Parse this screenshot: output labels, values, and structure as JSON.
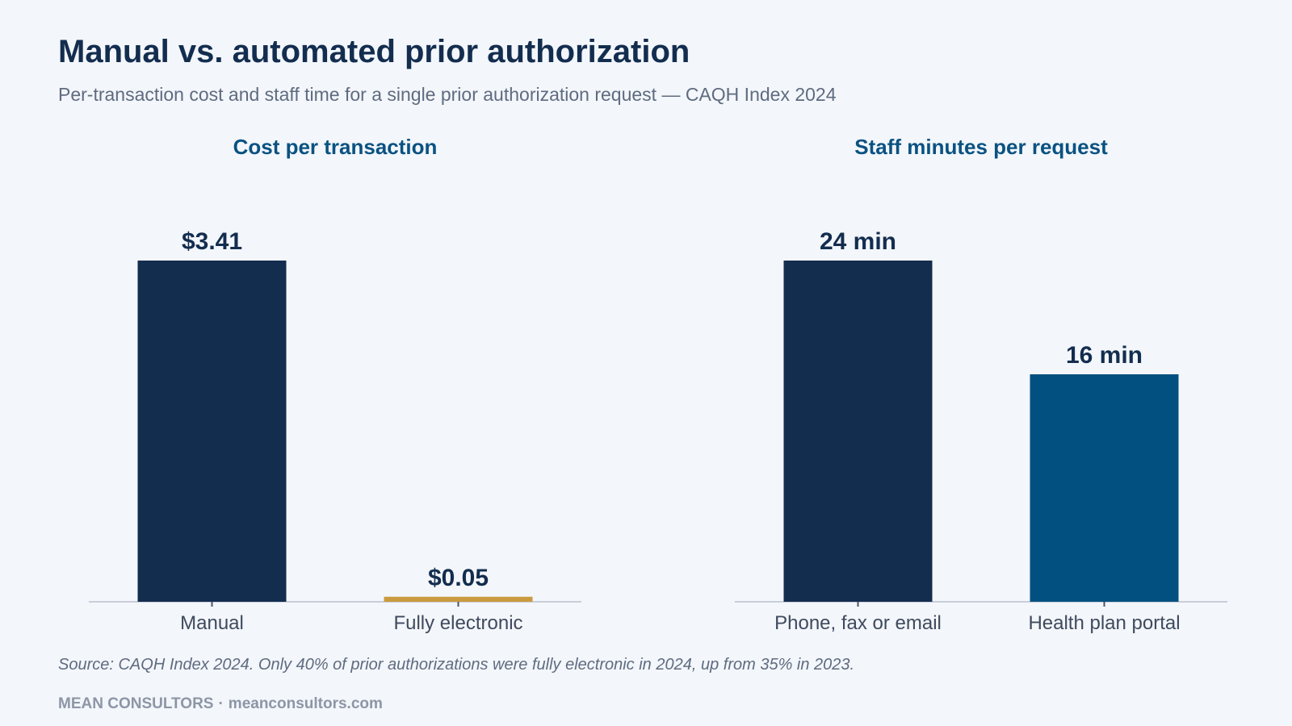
{
  "title": "Manual vs. automated prior authorization",
  "subtitle": "Per-transaction cost and staff time for a single prior authorization request — CAQH Index 2024",
  "chart_data": [
    {
      "type": "bar",
      "title": "Cost per transaction",
      "categories": [
        "Manual",
        "Fully electronic"
      ],
      "values": [
        3.41,
        0.05
      ],
      "value_labels": [
        "$3.41",
        "$0.05"
      ],
      "colors": [
        "#132d4f",
        "#c99a3e"
      ],
      "ylim": [
        0,
        3.41
      ],
      "grid": false,
      "legend": "none"
    },
    {
      "type": "bar",
      "title": "Staff minutes per request",
      "categories": [
        "Phone, fax or email",
        "Health plan portal"
      ],
      "values": [
        24,
        16
      ],
      "value_labels": [
        "24 min",
        "16 min"
      ],
      "colors": [
        "#132d4f",
        "#02507f"
      ],
      "ylim": [
        0,
        24
      ],
      "grid": false,
      "legend": "none"
    }
  ],
  "source": "Source: CAQH Index 2024. Only 40% of prior authorizations were fully electronic in 2024, up from 35% in 2023.",
  "brand": {
    "name": "MEAN CONSULTORS",
    "separator": "·",
    "url": "meanconsultors.com"
  },
  "colors": {
    "title": "#132d4f",
    "panel_title": "#0a5282",
    "muted": "#5f6b80",
    "axis": "#c8ceda",
    "background": "#f3f6fa"
  }
}
